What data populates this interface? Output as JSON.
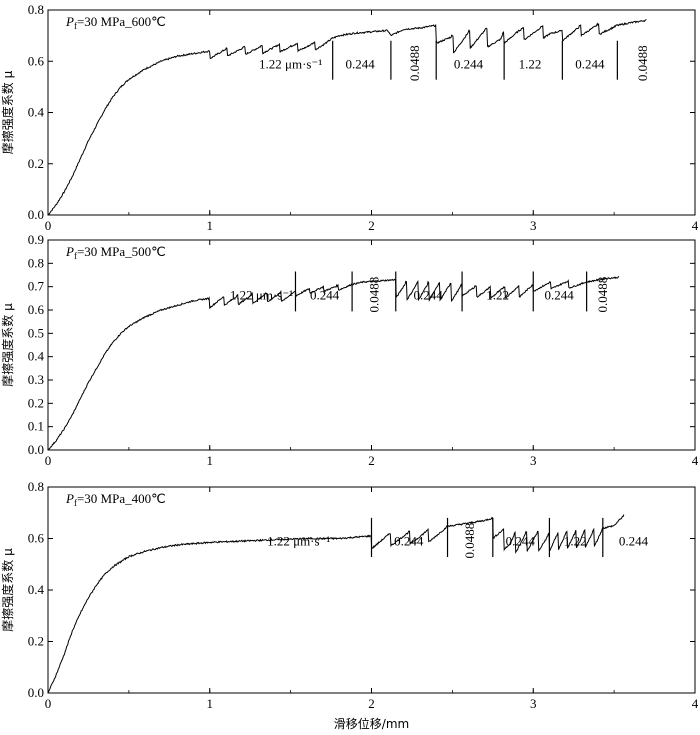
{
  "figure": {
    "xlabel": "滑移位移/mm"
  },
  "chart_data": [
    {
      "type": "line",
      "title": "Pf=30 MPa_600℃",
      "title_main": "P",
      "title_sub": "f",
      "title_rest": "=30 MPa_600℃",
      "ylabel": "摩擦强度系数 μ",
      "xlim": [
        0,
        4
      ],
      "ylim": [
        0,
        0.8
      ],
      "xticks": [
        0,
        1,
        2,
        3,
        4
      ],
      "yticks": [
        0.0,
        0.2,
        0.4,
        0.6,
        0.8
      ],
      "x_tick_labels": [
        "0",
        "1",
        "2",
        "3",
        "4"
      ],
      "y_tick_labels": [
        "0.0",
        "0.2",
        "0.4",
        "0.6",
        "0.8"
      ],
      "grid": false,
      "dividers": [
        1.76,
        2.12,
        2.4,
        2.82,
        3.18,
        3.52
      ],
      "segment_labels": [
        {
          "text": "1.22 μm·s⁻¹",
          "x": 1.5,
          "rotated": false
        },
        {
          "text": "0.244",
          "x": 1.93,
          "rotated": false
        },
        {
          "text": "0.0488",
          "x": 2.27,
          "rotated": true
        },
        {
          "text": "0.244",
          "x": 2.6,
          "rotated": false
        },
        {
          "text": "1.22",
          "x": 2.98,
          "rotated": false
        },
        {
          "text": "0.244",
          "x": 3.35,
          "rotated": false
        },
        {
          "text": "0.0488",
          "x": 3.68,
          "rotated": true
        }
      ],
      "series": [
        {
          "x": [
            0,
            0.05,
            0.1,
            0.15,
            0.2,
            0.25,
            0.3,
            0.35,
            0.4,
            0.45,
            0.5,
            0.6,
            0.7,
            0.8,
            0.9,
            1.0,
            1.1,
            1.2,
            1.3,
            1.4,
            1.5,
            1.6,
            1.7,
            1.76,
            1.8,
            1.9,
            2.0,
            2.1,
            2.12,
            2.2,
            2.3,
            2.4,
            2.5,
            2.6,
            2.7,
            2.8,
            2.82,
            2.9,
            3.0,
            3.1,
            3.18,
            3.3,
            3.4,
            3.52,
            3.6,
            3.7
          ],
          "y": [
            0.0,
            0.04,
            0.09,
            0.15,
            0.22,
            0.29,
            0.35,
            0.41,
            0.46,
            0.5,
            0.53,
            0.57,
            0.6,
            0.62,
            0.63,
            0.64,
            0.65,
            0.655,
            0.66,
            0.665,
            0.67,
            0.67,
            0.68,
            0.69,
            0.7,
            0.71,
            0.715,
            0.72,
            0.7,
            0.725,
            0.73,
            0.74,
            0.7,
            0.72,
            0.73,
            0.7,
            0.72,
            0.73,
            0.735,
            0.74,
            0.72,
            0.74,
            0.745,
            0.74,
            0.75,
            0.76
          ],
          "sawtooth": {
            "ranges": [
              [
                1.0,
                1.76,
                0.03
              ],
              [
                2.4,
                2.82,
                0.07
              ],
              [
                2.82,
                3.18,
                0.05
              ],
              [
                3.18,
                3.52,
                0.04
              ]
            ],
            "count": [
              7,
              4,
              3,
              3
            ]
          }
        }
      ]
    },
    {
      "type": "line",
      "title": "Pf=30 MPa_500℃",
      "title_main": "P",
      "title_sub": "f",
      "title_rest": "=30 MPa_500℃",
      "ylabel": "摩擦强度系数 μ",
      "xlim": [
        0,
        4
      ],
      "ylim": [
        0,
        0.9
      ],
      "xticks": [
        0,
        1,
        2,
        3,
        4
      ],
      "yticks": [
        0.0,
        0.1,
        0.2,
        0.3,
        0.4,
        0.5,
        0.6,
        0.7,
        0.8,
        0.9
      ],
      "x_tick_labels": [
        "0",
        "1",
        "2",
        "3",
        "4"
      ],
      "y_tick_labels": [
        "0.0",
        "0.1",
        "0.2",
        "0.3",
        "0.4",
        "0.5",
        "0.6",
        "0.7",
        "0.8",
        "0.9"
      ],
      "grid": false,
      "dividers": [
        1.53,
        1.88,
        2.15,
        2.56,
        3.0,
        3.33
      ],
      "segment_labels": [
        {
          "text": "1.22 μm·s⁻¹",
          "x": 1.32,
          "rotated": false
        },
        {
          "text": "0.244",
          "x": 1.71,
          "rotated": false
        },
        {
          "text": "0.0488",
          "x": 2.02,
          "rotated": true
        },
        {
          "text": "0.244",
          "x": 2.35,
          "rotated": false
        },
        {
          "text": "1.22",
          "x": 2.78,
          "rotated": false
        },
        {
          "text": "0.244",
          "x": 3.16,
          "rotated": false
        },
        {
          "text": "0.0488",
          "x": 3.43,
          "rotated": true
        }
      ],
      "series": [
        {
          "x": [
            0,
            0.05,
            0.1,
            0.15,
            0.2,
            0.25,
            0.3,
            0.35,
            0.4,
            0.45,
            0.5,
            0.6,
            0.7,
            0.8,
            0.9,
            1.0,
            1.1,
            1.2,
            1.3,
            1.4,
            1.53,
            1.6,
            1.7,
            1.8,
            1.88,
            1.95,
            2.05,
            2.15,
            2.25,
            2.35,
            2.45,
            2.56,
            2.7,
            2.85,
            3.0,
            3.1,
            3.2,
            3.33,
            3.45,
            3.53
          ],
          "y": [
            0.0,
            0.04,
            0.09,
            0.15,
            0.22,
            0.29,
            0.35,
            0.41,
            0.46,
            0.5,
            0.53,
            0.57,
            0.6,
            0.62,
            0.64,
            0.65,
            0.66,
            0.665,
            0.67,
            0.675,
            0.68,
            0.69,
            0.7,
            0.705,
            0.71,
            0.72,
            0.725,
            0.73,
            0.72,
            0.72,
            0.72,
            0.71,
            0.7,
            0.7,
            0.71,
            0.72,
            0.725,
            0.72,
            0.735,
            0.74
          ],
          "sawtooth": {
            "ranges": [
              [
                1.0,
                1.53,
                0.04
              ],
              [
                1.53,
                1.88,
                0.02
              ],
              [
                2.15,
                2.56,
                0.08
              ],
              [
                2.56,
                3.0,
                0.05
              ],
              [
                3.0,
                3.33,
                0.03
              ]
            ],
            "count": [
              6,
              4,
              6,
              5,
              3
            ]
          }
        }
      ]
    },
    {
      "type": "line",
      "title": "Pf=30 MPa_400℃",
      "title_main": "P",
      "title_sub": "f",
      "title_rest": "=30 MPa_400℃",
      "ylabel": "摩擦强度系数 μ",
      "xlim": [
        0,
        4
      ],
      "ylim": [
        0,
        0.8
      ],
      "xticks": [
        0,
        1,
        2,
        3,
        4
      ],
      "yticks": [
        0.0,
        0.2,
        0.4,
        0.6,
        0.8
      ],
      "x_tick_labels": [
        "0",
        "1",
        "2",
        "3",
        "4"
      ],
      "y_tick_labels": [
        "0.0",
        "0.2",
        "0.4",
        "0.6",
        "0.8"
      ],
      "grid": false,
      "dividers": [
        2.0,
        2.47,
        2.75,
        3.1,
        3.43
      ],
      "segment_labels": [
        {
          "text": "1.22 μm·s⁻¹",
          "x": 1.55,
          "rotated": false
        },
        {
          "text": "0.244",
          "x": 2.23,
          "rotated": false
        },
        {
          "text": "0.0488",
          "x": 2.61,
          "rotated": true
        },
        {
          "text": "0.244",
          "x": 2.92,
          "rotated": false
        },
        {
          "text": "1.22",
          "x": 3.26,
          "rotated": false
        },
        {
          "text": "0.244",
          "x": 3.62,
          "rotated": false
        }
      ],
      "series": [
        {
          "x": [
            0,
            0.05,
            0.1,
            0.15,
            0.2,
            0.25,
            0.3,
            0.35,
            0.4,
            0.5,
            0.6,
            0.7,
            0.8,
            0.9,
            1.0,
            1.2,
            1.4,
            1.6,
            1.8,
            2.0,
            2.1,
            2.2,
            2.3,
            2.4,
            2.5,
            2.6,
            2.7,
            2.75,
            2.85,
            3.0,
            3.1,
            3.2,
            3.3,
            3.43,
            3.5,
            3.56
          ],
          "y": [
            0.0,
            0.07,
            0.15,
            0.24,
            0.31,
            0.37,
            0.42,
            0.46,
            0.49,
            0.53,
            0.55,
            0.565,
            0.575,
            0.58,
            0.585,
            0.59,
            0.595,
            0.6,
            0.6,
            0.61,
            0.62,
            0.625,
            0.63,
            0.64,
            0.65,
            0.66,
            0.67,
            0.68,
            0.62,
            0.63,
            0.62,
            0.63,
            0.63,
            0.64,
            0.65,
            0.69
          ],
          "sawtooth": {
            "ranges": [
              [
                2.0,
                2.47,
                0.05
              ],
              [
                2.75,
                3.1,
                0.08
              ],
              [
                3.1,
                3.43,
                0.07
              ]
            ],
            "count": [
              4,
              5,
              6
            ]
          }
        }
      ]
    }
  ]
}
